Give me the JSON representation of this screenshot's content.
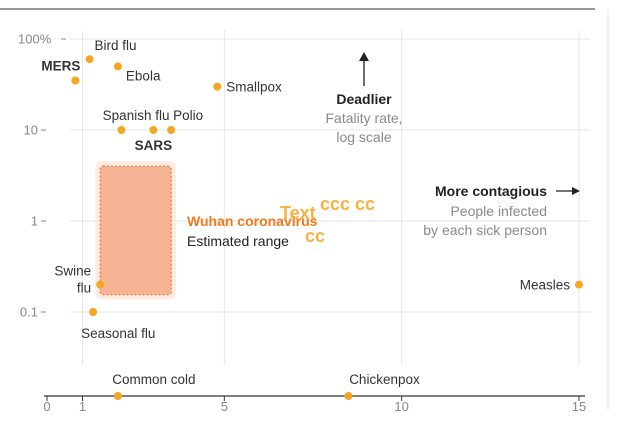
{
  "chart_data": {
    "type": "scatter",
    "x_axis": {
      "label": "",
      "range": [
        0,
        15
      ],
      "ticks": [
        0,
        1,
        5,
        10,
        15
      ],
      "tick_labels": [
        "0",
        "1",
        "5",
        "10",
        "15"
      ]
    },
    "y_axis": {
      "scale": "log",
      "range": [
        0.05,
        100
      ],
      "ticks": [
        100,
        10,
        1,
        0.1
      ],
      "tick_labels": [
        "100%",
        "10",
        "1",
        "0.1"
      ]
    },
    "grid": true,
    "points": [
      {
        "name": "Bird flu",
        "x": 1.2,
        "y": 60,
        "bold": false
      },
      {
        "name": "Ebola",
        "x": 2.0,
        "y": 50,
        "bold": false
      },
      {
        "name": "MERS",
        "x": 0.8,
        "y": 35,
        "bold": true
      },
      {
        "name": "Smallpox",
        "x": 4.8,
        "y": 30,
        "bold": false
      },
      {
        "name": "Spanish flu",
        "x": 2.1,
        "y": 10,
        "bold": false
      },
      {
        "name": "SARS",
        "x": 3.0,
        "y": 10,
        "bold": true
      },
      {
        "name": "Polio",
        "x": 3.5,
        "y": 10,
        "bold": false
      },
      {
        "name": "Swine flu",
        "x": 1.5,
        "y": 0.2,
        "bold": false
      },
      {
        "name": "Seasonal flu",
        "x": 1.3,
        "y": 0.1,
        "bold": false
      },
      {
        "name": "Measles",
        "x": 15.0,
        "y": 0.2,
        "bold": false
      }
    ],
    "baseline_points": [
      {
        "name": "Common cold",
        "x": 2.0
      },
      {
        "name": "Chickenpox",
        "x": 8.5
      }
    ],
    "estimated_range": {
      "name": "Wuhan coronavirus",
      "subtitle": "Estimated range",
      "x": [
        1.5,
        3.5
      ],
      "y": [
        0.2,
        4
      ]
    },
    "annotations": {
      "deadlier": {
        "title": "Deadlier",
        "lines": [
          "Fatality rate,",
          "log scale"
        ]
      },
      "contagious": {
        "title": "More contagious",
        "lines": [
          "People infected",
          "by each sick person"
        ]
      }
    },
    "artifact_text": [
      "ccc cc",
      "Text",
      "cc"
    ],
    "colors": {
      "point": "#f5a623",
      "range_fill": "#f4b393",
      "range_border": "#e8763a",
      "wuhan_label": "#f07a1c",
      "grid": "#e6e6e6",
      "axis": "#333333"
    }
  }
}
